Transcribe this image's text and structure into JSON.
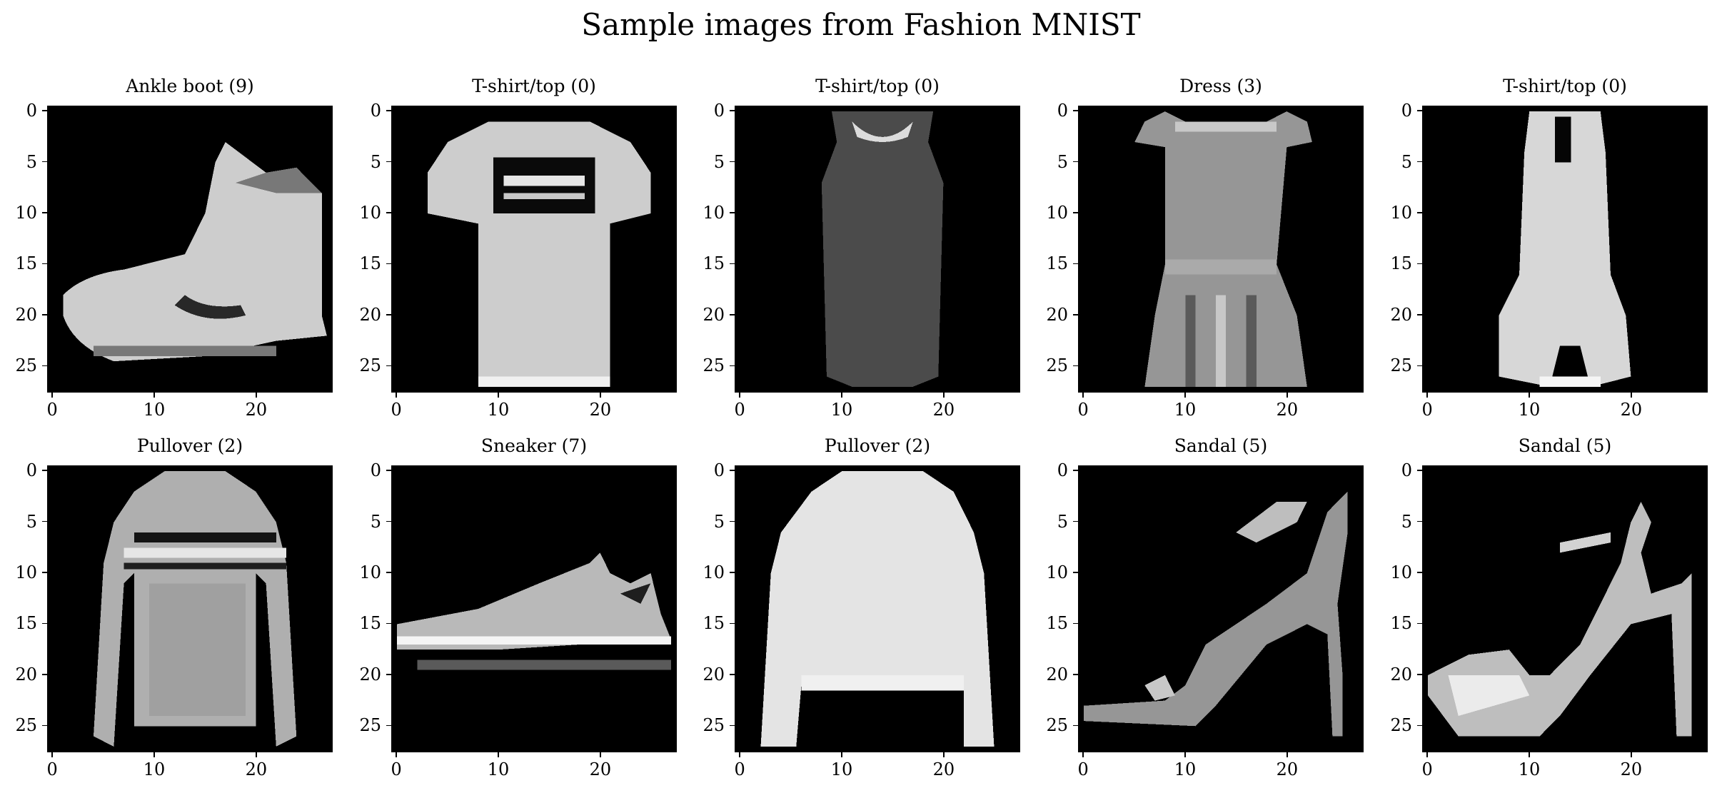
{
  "chart_data": {
    "type": "heatmap",
    "title": "Sample images from Fashion MNIST",
    "colormap": "gray",
    "image_size": [
      28,
      28
    ],
    "x_ticks": [
      0,
      10,
      20
    ],
    "y_ticks": [
      0,
      5,
      10,
      15,
      20,
      25
    ],
    "panels": [
      {
        "title": "Ankle boot (9)",
        "item": "ankle-boot"
      },
      {
        "title": "T-shirt/top (0)",
        "item": "tshirt-print"
      },
      {
        "title": "T-shirt/top (0)",
        "item": "tank-top"
      },
      {
        "title": "Dress (3)",
        "item": "dress"
      },
      {
        "title": "T-shirt/top (0)",
        "item": "romper"
      },
      {
        "title": "Pullover (2)",
        "item": "pullover-striped"
      },
      {
        "title": "Sneaker (7)",
        "item": "sneaker"
      },
      {
        "title": "Pullover (2)",
        "item": "pullover-plain"
      },
      {
        "title": "Sandal (5)",
        "item": "sandal-heel"
      },
      {
        "title": "Sandal (5)",
        "item": "sandal-strap"
      }
    ]
  },
  "colors": {
    "background": "#000000",
    "figure": "#ffffff",
    "text": "#000000"
  }
}
